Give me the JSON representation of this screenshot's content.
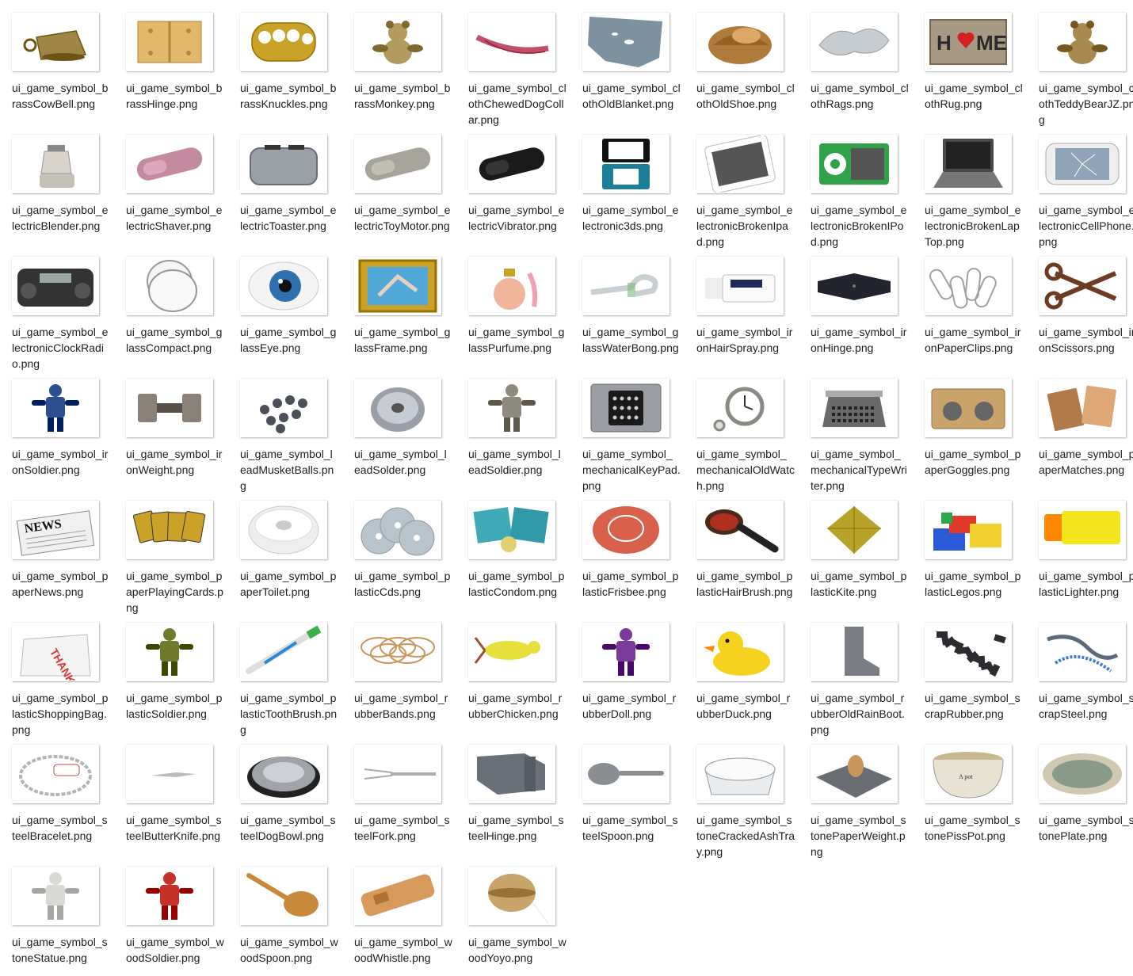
{
  "files": [
    {
      "name": "ui_game_symbol_brassCowBell.png",
      "icon": "brass-cow-bell",
      "color": "#a08646"
    },
    {
      "name": "ui_game_symbol_brassHinge.png",
      "icon": "brass-hinge",
      "color": "#e2b86a"
    },
    {
      "name": "ui_game_symbol_brassKnuckles.png",
      "icon": "brass-knuckles",
      "color": "#c9a227"
    },
    {
      "name": "ui_game_symbol_brassMonkey.png",
      "icon": "brass-monkey",
      "color": "#b39a5f"
    },
    {
      "name": "ui_game_symbol_clothChewedDogCollar.png",
      "icon": "dog-collar",
      "color": "#c0506a"
    },
    {
      "name": "ui_game_symbol_clothOldBlanket.png",
      "icon": "old-blanket",
      "color": "#7d92a0"
    },
    {
      "name": "ui_game_symbol_clothOldShoe.png",
      "icon": "old-shoe",
      "color": "#b07a3a"
    },
    {
      "name": "ui_game_symbol_clothRags.png",
      "icon": "rags",
      "color": "#c7ccd1"
    },
    {
      "name": "ui_game_symbol_clothRug.png",
      "icon": "rug",
      "color": "#a89a82"
    },
    {
      "name": "ui_game_symbol_clothTeddyBearJZ.png",
      "icon": "teddy-bear",
      "color": "#a8894f"
    },
    {
      "name": "ui_game_symbol_electricBlender.png",
      "icon": "blender",
      "color": "#d8d4cc"
    },
    {
      "name": "ui_game_symbol_electricShaver.png",
      "icon": "shaver",
      "color": "#c48aa0"
    },
    {
      "name": "ui_game_symbol_electricToaster.png",
      "icon": "toaster",
      "color": "#9aa0a6"
    },
    {
      "name": "ui_game_symbol_electricToyMotor.png",
      "icon": "toy-motor",
      "color": "#a6a39a"
    },
    {
      "name": "ui_game_symbol_electricVibrator.png",
      "icon": "vibrator",
      "color": "#1a1a1a"
    },
    {
      "name": "ui_game_symbol_electronic3ds.png",
      "icon": "handheld-console",
      "color": "#1c7f9a"
    },
    {
      "name": "ui_game_symbol_electronicBrokenIpad.png",
      "icon": "broken-tablet",
      "color": "#555555"
    },
    {
      "name": "ui_game_symbol_electronicBrokenIPod.png",
      "icon": "broken-music-player",
      "color": "#2fa24a"
    },
    {
      "name": "ui_game_symbol_electronicBrokenLapTop.png",
      "icon": "broken-laptop",
      "color": "#4a4a4a"
    },
    {
      "name": "ui_game_symbol_electronicCellPhone.png",
      "icon": "cell-phone",
      "color": "#8fa4b8"
    },
    {
      "name": "ui_game_symbol_electronicClockRadio.png",
      "icon": "clock-radio",
      "color": "#333333"
    },
    {
      "name": "ui_game_symbol_glassCompact.png",
      "icon": "compact-mirror",
      "color": "#c8c8c8"
    },
    {
      "name": "ui_game_symbol_glassEye.png",
      "icon": "glass-eye",
      "color": "#2f6fb0"
    },
    {
      "name": "ui_game_symbol_glassFrame.png",
      "icon": "picture-frame",
      "color": "#c9a227"
    },
    {
      "name": "ui_game_symbol_glassPurfume.png",
      "icon": "perfume-bottle",
      "color": "#f0b49a"
    },
    {
      "name": "ui_game_symbol_glassWaterBong.png",
      "icon": "water-bong",
      "color": "#dfe5e8"
    },
    {
      "name": "ui_game_symbol_ironHairSpray.png",
      "icon": "hair-spray",
      "color": "#1e2a5a"
    },
    {
      "name": "ui_game_symbol_ironHinge.png",
      "icon": "iron-hinge",
      "color": "#22252e"
    },
    {
      "name": "ui_game_symbol_ironPaperClips.png",
      "icon": "paper-clips",
      "color": "#a0a0a0"
    },
    {
      "name": "ui_game_symbol_ironScissors.png",
      "icon": "scissors",
      "color": "#6b3b22"
    },
    {
      "name": "ui_game_symbol_ironSoldier.png",
      "icon": "iron-soldier",
      "color": "#2c4f8f"
    },
    {
      "name": "ui_game_symbol_ironWeight.png",
      "icon": "dumbbell",
      "color": "#8a8178"
    },
    {
      "name": "ui_game_symbol_leadMusketBalls.png",
      "icon": "musket-balls",
      "color": "#4a4f5a"
    },
    {
      "name": "ui_game_symbol_leadSolder.png",
      "icon": "solder-spool",
      "color": "#9a9ea6"
    },
    {
      "name": "ui_game_symbol_leadSoldier.png",
      "icon": "lead-soldier",
      "color": "#8f8a7e"
    },
    {
      "name": "ui_game_symbol_mechanicalKeyPad.png",
      "icon": "key-pad",
      "color": "#9b9ea2"
    },
    {
      "name": "ui_game_symbol_mechanicalOldWatch.png",
      "icon": "pocket-watch",
      "color": "#8a8a82"
    },
    {
      "name": "ui_game_symbol_mechanicalTypeWriter.png",
      "icon": "typewriter",
      "color": "#6a6a6a"
    },
    {
      "name": "ui_game_symbol_paperGoggles.png",
      "icon": "cardboard-goggles",
      "color": "#c9a46a"
    },
    {
      "name": "ui_game_symbol_paperMatches.png",
      "icon": "matchbooks",
      "color": "#b07a4a"
    },
    {
      "name": "ui_game_symbol_paperNews.png",
      "icon": "newspaper",
      "color": "#9a9a9a"
    },
    {
      "name": "ui_game_symbol_paperPlayingCards.png",
      "icon": "playing-cards",
      "color": "#c9a227"
    },
    {
      "name": "ui_game_symbol_paperToilet.png",
      "icon": "toilet-paper",
      "color": "#eeeeee"
    },
    {
      "name": "ui_game_symbol_plasticCds.png",
      "icon": "compact-discs",
      "color": "#b8c4cc"
    },
    {
      "name": "ui_game_symbol_plasticCondom.png",
      "icon": "condoms",
      "color": "#3fa9b8"
    },
    {
      "name": "ui_game_symbol_plasticFrisbee.png",
      "icon": "frisbee",
      "color": "#d9604a"
    },
    {
      "name": "ui_game_symbol_plasticHairBrush.png",
      "icon": "hair-brush",
      "color": "#4a2a1a"
    },
    {
      "name": "ui_game_symbol_plasticKite.png",
      "icon": "kite",
      "color": "#b8a32a"
    },
    {
      "name": "ui_game_symbol_plasticLegos.png",
      "icon": "building-blocks",
      "color": "#e03a2a"
    },
    {
      "name": "ui_game_symbol_plasticLighter.png",
      "icon": "lighter",
      "color": "#f2e51e"
    },
    {
      "name": "ui_game_symbol_plasticShoppingBag.png",
      "icon": "shopping-bag",
      "color": "#d83a3a"
    },
    {
      "name": "ui_game_symbol_plasticSoldier.png",
      "icon": "plastic-soldier",
      "color": "#6f7a2a"
    },
    {
      "name": "ui_game_symbol_plasticToothBrush.png",
      "icon": "toothbrush",
      "color": "#2a8ad8"
    },
    {
      "name": "ui_game_symbol_rubberBands.png",
      "icon": "rubber-bands",
      "color": "#c8955a"
    },
    {
      "name": "ui_game_symbol_rubberChicken.png",
      "icon": "rubber-chicken",
      "color": "#e8e03a"
    },
    {
      "name": "ui_game_symbol_rubberDoll.png",
      "icon": "rubber-doll",
      "color": "#7a3a9a"
    },
    {
      "name": "ui_game_symbol_rubberDuck.png",
      "icon": "rubber-duck",
      "color": "#f5d21e"
    },
    {
      "name": "ui_game_symbol_rubberOldRainBoot.png",
      "icon": "rain-boot",
      "color": "#7a7e84"
    },
    {
      "name": "ui_game_symbol_scrapRubber.png",
      "icon": "scrap-rubber",
      "color": "#2a2c30"
    },
    {
      "name": "ui_game_symbol_scrapSteel.png",
      "icon": "scrap-steel",
      "color": "#5a6a7a"
    },
    {
      "name": "ui_game_symbol_steelBracelet.png",
      "icon": "bracelet",
      "color": "#b0b4b8"
    },
    {
      "name": "ui_game_symbol_steelButterKnife.png",
      "icon": "butter-knife",
      "color": "#b8bcc0"
    },
    {
      "name": "ui_game_symbol_steelDogBowl.png",
      "icon": "dog-bowl",
      "color": "#a0a4a8"
    },
    {
      "name": "ui_game_symbol_steelFork.png",
      "icon": "fork",
      "color": "#a8acb0"
    },
    {
      "name": "ui_game_symbol_steelHinge.png",
      "icon": "steel-hinge",
      "color": "#6a7078"
    },
    {
      "name": "ui_game_symbol_steelSpoon.png",
      "icon": "spoon",
      "color": "#8a8e92"
    },
    {
      "name": "ui_game_symbol_stoneCrackedAshTray.png",
      "icon": "ash-tray",
      "color": "#e8ecee"
    },
    {
      "name": "ui_game_symbol_stonePaperWeight.png",
      "icon": "paper-weight",
      "color": "#6a6e72"
    },
    {
      "name": "ui_game_symbol_stonePissPot.png",
      "icon": "piss-pot",
      "color": "#e8e2d2"
    },
    {
      "name": "ui_game_symbol_stonePlate.png",
      "icon": "stone-plate",
      "color": "#8a9a8a"
    },
    {
      "name": "ui_game_symbol_stoneStatue.png",
      "icon": "statue",
      "color": "#d8d8d4"
    },
    {
      "name": "ui_game_symbol_woodSoldier.png",
      "icon": "wood-soldier",
      "color": "#c8302a"
    },
    {
      "name": "ui_game_symbol_woodSpoon.png",
      "icon": "wooden-spoon",
      "color": "#c88a3a"
    },
    {
      "name": "ui_game_symbol_woodWhistle.png",
      "icon": "wood-whistle",
      "color": "#d89a5a"
    },
    {
      "name": "ui_game_symbol_woodYoyo.png",
      "icon": "yoyo",
      "color": "#c8a46a"
    }
  ]
}
